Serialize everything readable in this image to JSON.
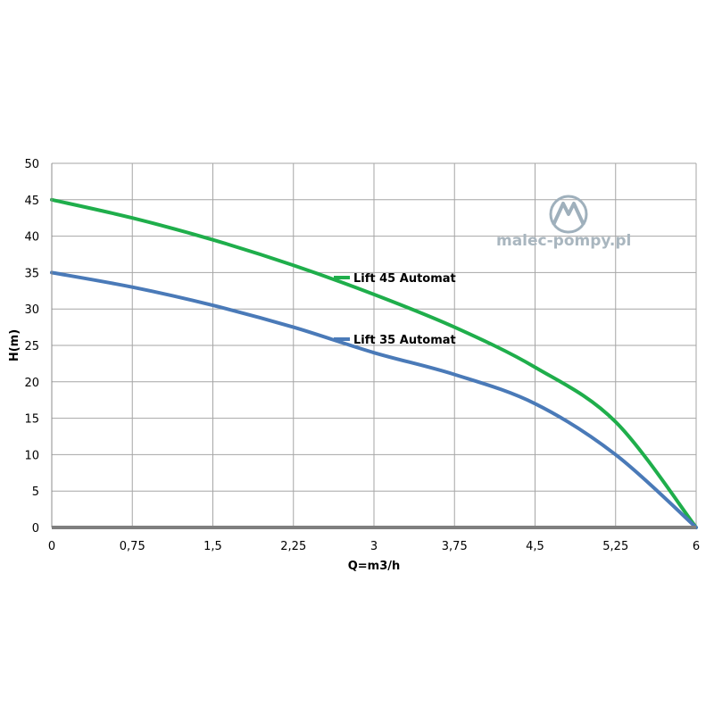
{
  "chart_data": {
    "type": "line",
    "xlabel": "Q=m3/h",
    "ylabel": "H(m)",
    "xlim": [
      0,
      6
    ],
    "ylim": [
      0,
      50
    ],
    "x_ticks": [
      "0",
      "0,75",
      "1,5",
      "2,25",
      "3",
      "3,75",
      "4,5",
      "5,25",
      "6"
    ],
    "y_ticks": [
      "0",
      "5",
      "10",
      "15",
      "20",
      "25",
      "30",
      "35",
      "40",
      "45",
      "50"
    ],
    "grid": true,
    "series": [
      {
        "name": "Lift 45 Automat",
        "color": "#1fae4b",
        "x": [
          0,
          0.75,
          1.5,
          2.25,
          3,
          3.75,
          4.5,
          5.25,
          6
        ],
        "y": [
          45,
          42.5,
          39.5,
          36,
          32,
          27.5,
          22,
          14.5,
          0
        ]
      },
      {
        "name": "Lift 35 Automat",
        "color": "#4a7ab8",
        "x": [
          0,
          0.75,
          1.5,
          2.25,
          3,
          3.75,
          4.5,
          5.25,
          6
        ],
        "y": [
          35,
          33,
          30.5,
          27.5,
          24,
          21,
          17,
          10,
          0
        ]
      }
    ]
  },
  "logo": {
    "text": "malec-pompy.pl",
    "color": "#a9b6bf",
    "icon": "malec-pompy-logo-icon"
  }
}
